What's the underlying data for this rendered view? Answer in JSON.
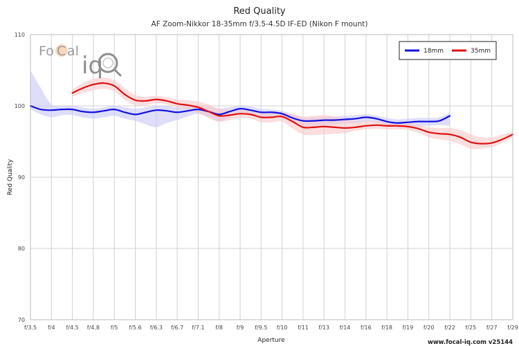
{
  "chart_data": {
    "type": "line",
    "title": "Red Quality",
    "subtitle": "AF Zoom-Nikkor 18-35mm f/3.5-4.5D IF-ED (Nikon F mount)",
    "xlabel": "Aperture",
    "ylabel": "Red Quality",
    "ylim": [
      70,
      110
    ],
    "yticks": [
      "70",
      "80",
      "90",
      "100",
      "110"
    ],
    "categories": [
      "f/3.5",
      "f/4",
      "f/4.5",
      "f/4.8",
      "f/5",
      "f/5.6",
      "f/6.3",
      "f/6.7",
      "f/7.1",
      "f/8",
      "f/9",
      "f/9.5",
      "f/10",
      "f/11",
      "f/13",
      "f/14",
      "f/16",
      "f/18",
      "f/19",
      "f/20",
      "f/22",
      "f/25",
      "f/27",
      "f/29"
    ],
    "grid": true,
    "legend_position": "top-right",
    "series": [
      {
        "name": "18mm",
        "color": "#1010e0",
        "band_color": "#c8c8f8",
        "x": [
          0,
          0.5,
          1,
          1.5,
          2,
          2.5,
          3,
          3.5,
          4,
          4.5,
          5,
          5.5,
          6,
          6.5,
          7,
          7.5,
          8,
          8.5,
          9,
          9.5,
          10,
          10.5,
          11,
          11.5,
          12,
          12.5,
          13,
          13.5,
          14,
          14.5,
          15,
          15.5,
          16,
          16.5,
          17,
          17.5,
          18,
          18.5,
          19,
          19.5,
          20
        ],
        "values": [
          100.0,
          99.5,
          99.4,
          99.5,
          99.5,
          99.2,
          99.1,
          99.3,
          99.5,
          99.1,
          98.8,
          99.1,
          99.4,
          99.3,
          99.1,
          99.3,
          99.5,
          99.2,
          98.8,
          99.2,
          99.6,
          99.4,
          99.1,
          99.1,
          98.9,
          98.3,
          97.9,
          97.9,
          98.0,
          98.0,
          98.1,
          98.2,
          98.4,
          98.2,
          97.8,
          97.6,
          97.7,
          97.8,
          97.8,
          97.9,
          98.6
        ],
        "band_upper": [
          105.0,
          102.5,
          100.2,
          100.0,
          100.0,
          99.8,
          99.6,
          99.8,
          100.0,
          99.8,
          99.6,
          99.8,
          100.0,
          100.0,
          99.8,
          99.9,
          100.0,
          99.9,
          99.6,
          99.8,
          100.0,
          99.9,
          99.6,
          99.5,
          99.3,
          98.8,
          98.4,
          98.4,
          98.5,
          98.5,
          98.6,
          98.7,
          98.8,
          98.6,
          98.3,
          98.1,
          98.2,
          98.3,
          98.3,
          98.4,
          99.0
        ],
        "band_lower": [
          99.5,
          98.8,
          98.4,
          98.7,
          98.7,
          98.4,
          98.2,
          98.4,
          98.6,
          98.2,
          97.9,
          97.4,
          97.0,
          97.6,
          98.0,
          98.5,
          98.9,
          98.4,
          97.8,
          98.4,
          99.0,
          98.8,
          98.5,
          98.5,
          98.3,
          97.6,
          97.2,
          97.2,
          97.3,
          97.4,
          97.5,
          97.6,
          97.8,
          97.6,
          97.2,
          97.0,
          97.1,
          97.2,
          97.2,
          97.3,
          97.2
        ]
      },
      {
        "name": "35mm",
        "color": "#e01010",
        "band_color": "#f8c8c8",
        "x": [
          2,
          2.5,
          3,
          3.5,
          4,
          4.5,
          5,
          5.5,
          6,
          6.5,
          7,
          7.5,
          8,
          8.5,
          9,
          9.5,
          10,
          10.5,
          11,
          11.5,
          12,
          12.5,
          13,
          13.5,
          14,
          14.5,
          15,
          15.5,
          16,
          16.5,
          17,
          17.5,
          18,
          18.5,
          19,
          19.5,
          20,
          20.5,
          21,
          21.5,
          22,
          22.5,
          23
        ],
        "values": [
          101.8,
          102.5,
          103.0,
          103.2,
          102.8,
          101.6,
          100.8,
          100.7,
          100.9,
          100.7,
          100.3,
          100.1,
          99.8,
          99.2,
          98.6,
          98.7,
          98.9,
          98.8,
          98.4,
          98.4,
          98.5,
          97.8,
          97.0,
          97.0,
          97.1,
          97.0,
          96.9,
          97.0,
          97.2,
          97.3,
          97.2,
          97.2,
          97.1,
          96.8,
          96.3,
          96.1,
          96.0,
          95.6,
          94.9,
          94.7,
          94.8,
          95.3,
          96.0
        ],
        "band_upper": [
          102.3,
          103.2,
          103.8,
          104.0,
          103.6,
          102.5,
          101.5,
          101.3,
          101.4,
          101.2,
          100.9,
          100.8,
          100.6,
          100.2,
          99.6,
          99.5,
          99.5,
          99.3,
          99.0,
          99.0,
          99.1,
          98.9,
          98.5,
          98.6,
          98.7,
          98.5,
          98.2,
          97.9,
          97.9,
          97.9,
          97.8,
          97.7,
          97.6,
          97.4,
          97.0,
          96.9,
          96.9,
          96.6,
          96.0,
          95.6,
          95.6,
          96.0,
          96.4
        ],
        "band_lower": [
          101.3,
          101.8,
          102.2,
          102.4,
          102.0,
          100.8,
          100.1,
          100.1,
          100.4,
          100.2,
          99.8,
          99.4,
          99.0,
          98.3,
          97.8,
          98.0,
          98.3,
          98.2,
          97.7,
          97.7,
          97.8,
          96.8,
          96.0,
          95.9,
          96.0,
          96.1,
          96.2,
          96.5,
          96.7,
          96.8,
          96.7,
          96.7,
          96.6,
          96.2,
          95.6,
          95.3,
          95.1,
          94.6,
          94.0,
          94.0,
          94.2,
          94.8,
          95.6
        ]
      }
    ]
  },
  "logo": {
    "brand_left": "Fo",
    "brand_mid": "C",
    "brand_right": "al",
    "brand_iq": "iq",
    "color": "#8e8e8e",
    "accent": "#f5c9a8"
  },
  "footer": "www.focal-iq.com  v25144"
}
